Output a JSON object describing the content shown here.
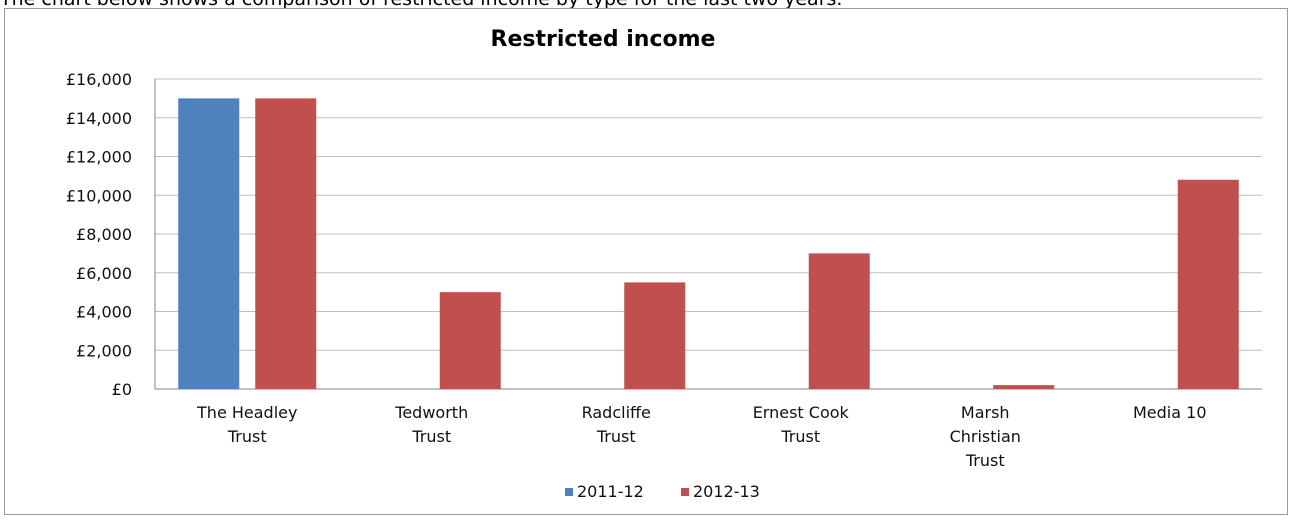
{
  "intro_text": "The chart below shows a comparison of restricted income by type for the last two years.",
  "colors": {
    "s2011": "#4f81bd",
    "s2012": "#c0504d",
    "grid": "#bfbfbf",
    "axis": "#868686"
  },
  "chart_data": {
    "type": "bar",
    "title": "Restricted income",
    "xlabel": "",
    "ylabel": "",
    "ylim": [
      0,
      16000
    ],
    "yticks": [
      0,
      2000,
      4000,
      6000,
      8000,
      10000,
      12000,
      14000,
      16000
    ],
    "ytick_labels": [
      "£0",
      "£2,000",
      "£4,000",
      "£6,000",
      "£8,000",
      "£10,000",
      "£12,000",
      "£14,000",
      "£16,000"
    ],
    "categories": [
      [
        "The Headley",
        "Trust"
      ],
      [
        "Tedworth",
        "Trust"
      ],
      [
        "Radcliffe",
        "Trust"
      ],
      [
        "Ernest Cook",
        "Trust"
      ],
      [
        "Marsh",
        "Christian",
        "Trust"
      ],
      [
        "Media 10"
      ]
    ],
    "series": [
      {
        "name": "2011-12",
        "values": [
          15000,
          0,
          0,
          0,
          0,
          0
        ]
      },
      {
        "name": "2012-13",
        "values": [
          15000,
          5000,
          5500,
          7000,
          200,
          10800
        ]
      }
    ],
    "grid": true,
    "legend": "bottom"
  }
}
